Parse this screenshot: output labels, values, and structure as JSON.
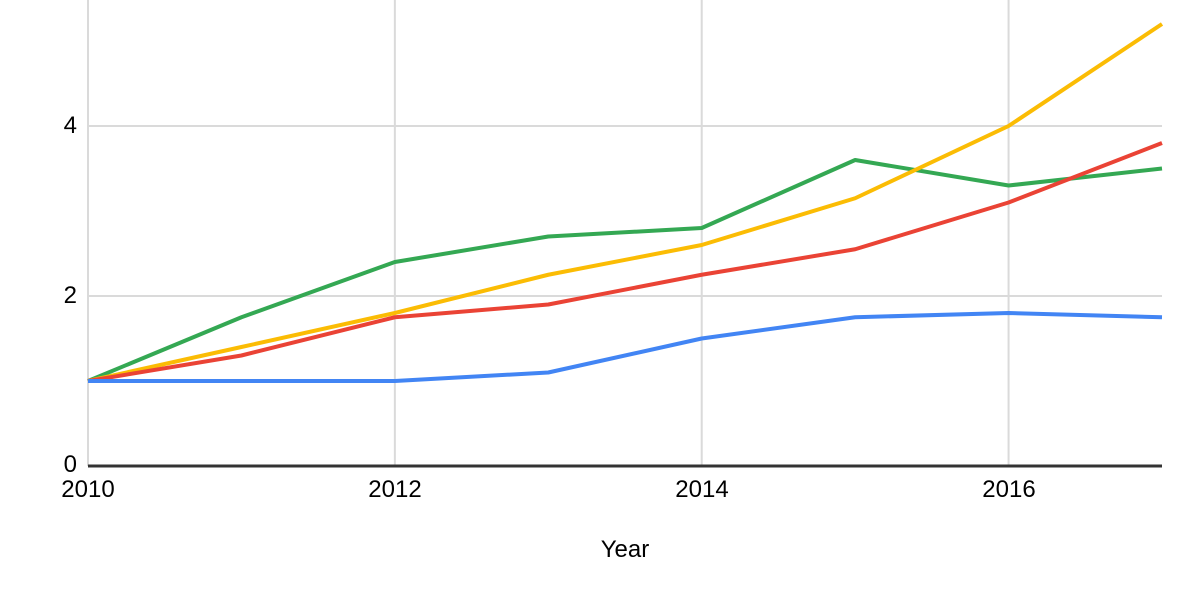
{
  "chart_data": {
    "type": "line",
    "title": "",
    "xlabel": "Year",
    "ylabel": "",
    "x": [
      2010,
      2011,
      2012,
      2013,
      2014,
      2015,
      2016,
      2017
    ],
    "x_range": [
      2010,
      2017
    ],
    "y_ticks": [
      "0",
      "2",
      "4"
    ],
    "x_ticks": [
      "2010",
      "2012",
      "2014",
      "2016"
    ],
    "y_visible_max": 5.48,
    "grid": true,
    "legend": "none",
    "series": [
      {
        "name": "green",
        "color": "#34A853",
        "values": [
          1.0,
          1.75,
          2.4,
          2.7,
          2.8,
          3.6,
          3.3,
          3.5
        ]
      },
      {
        "name": "yellow",
        "color": "#FBBC04",
        "values": [
          1.0,
          1.4,
          1.8,
          2.25,
          2.6,
          3.15,
          4.0,
          5.2
        ]
      },
      {
        "name": "red",
        "color": "#EA4335",
        "values": [
          1.0,
          1.3,
          1.75,
          1.9,
          2.25,
          2.55,
          3.1,
          3.8
        ]
      },
      {
        "name": "blue",
        "color": "#4285F4",
        "values": [
          1.0,
          1.0,
          1.0,
          1.1,
          1.5,
          1.75,
          1.8,
          1.75
        ]
      }
    ],
    "colors": {
      "gridline": "#dadada",
      "axis": "#333333",
      "text": "#000000",
      "background": "#ffffff"
    }
  }
}
